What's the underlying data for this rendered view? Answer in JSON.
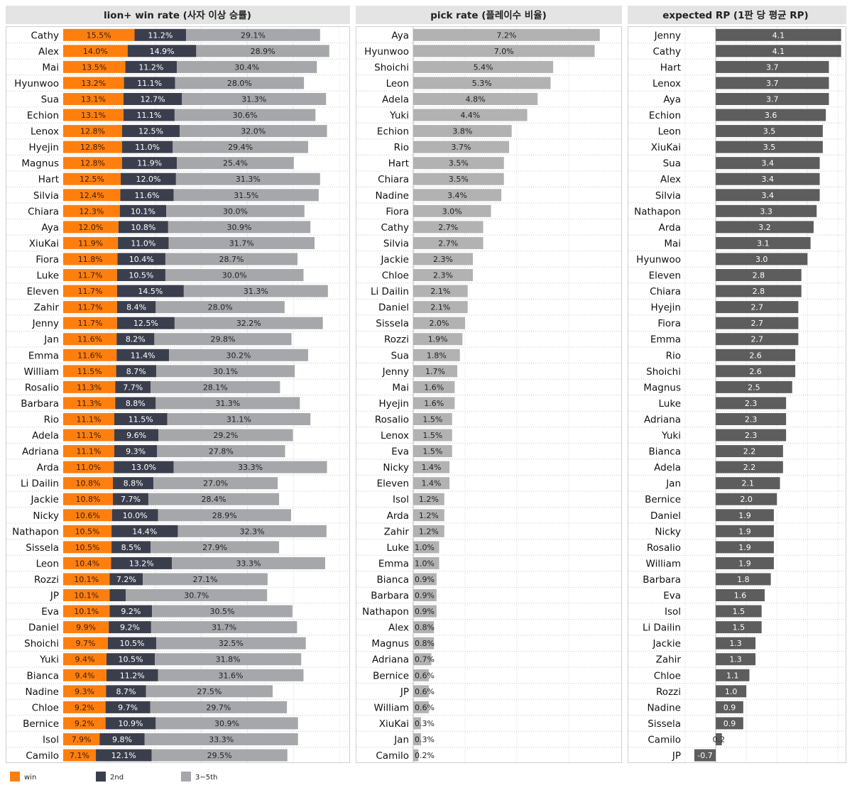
{
  "colors": {
    "win": "#ff7f0e",
    "second": "#3b3f4d",
    "third": "#a5a7aa",
    "pick": "#b2b2b2",
    "rp": "#5d5d5d",
    "header_bg": "#e4e4e4"
  },
  "legend": {
    "win": "win",
    "second": "2nd",
    "third": "3~5th"
  },
  "chart_data": [
    {
      "type": "bar",
      "stacked": true,
      "orientation": "horizontal",
      "title": "lion+ win rate (사자 이상 승률)",
      "series_names": [
        "win",
        "2nd",
        "3~5th"
      ],
      "categories": [
        "Cathy",
        "Alex",
        "Mai",
        "Hyunwoo",
        "Sua",
        "Echion",
        "Lenox",
        "Hyejin",
        "Magnus",
        "Hart",
        "Silvia",
        "Chiara",
        "Aya",
        "XiuKai",
        "Fiora",
        "Luke",
        "Eleven",
        "Zahir",
        "Jenny",
        "Jan",
        "Emma",
        "William",
        "Rosalio",
        "Barbara",
        "Rio",
        "Adela",
        "Adriana",
        "Arda",
        "Li Dailin",
        "Jackie",
        "Nicky",
        "Nathapon",
        "Sissela",
        "Leon",
        "Rozzi",
        "JP",
        "Eva",
        "Daniel",
        "Shoichi",
        "Yuki",
        "Bianca",
        "Nadine",
        "Chloe",
        "Bernice",
        "Isol",
        "Camilo"
      ],
      "win": [
        15.5,
        14.0,
        13.5,
        13.2,
        13.1,
        13.1,
        12.8,
        12.8,
        12.8,
        12.5,
        12.4,
        12.3,
        12.0,
        11.9,
        11.8,
        11.7,
        11.7,
        11.7,
        11.7,
        11.6,
        11.6,
        11.5,
        11.3,
        11.3,
        11.1,
        11.1,
        11.1,
        11.0,
        10.8,
        10.8,
        10.6,
        10.5,
        10.5,
        10.4,
        10.1,
        10.1,
        10.1,
        9.9,
        9.7,
        9.4,
        9.4,
        9.3,
        9.2,
        9.2,
        7.9,
        7.1
      ],
      "second": [
        11.2,
        14.9,
        11.2,
        11.1,
        12.7,
        11.1,
        12.5,
        11.0,
        11.9,
        12.0,
        11.6,
        10.1,
        10.8,
        11.0,
        10.4,
        10.5,
        14.5,
        8.4,
        12.5,
        8.2,
        11.4,
        8.7,
        7.7,
        8.8,
        11.5,
        9.6,
        9.3,
        13.0,
        8.8,
        7.7,
        10.0,
        14.4,
        8.5,
        13.2,
        7.2,
        3.5,
        9.2,
        9.2,
        10.5,
        10.5,
        11.2,
        8.7,
        9.7,
        10.9,
        9.8,
        12.1
      ],
      "third": [
        29.1,
        28.9,
        30.4,
        28.0,
        31.3,
        30.6,
        32.0,
        29.4,
        25.4,
        31.3,
        31.5,
        30.0,
        30.9,
        31.7,
        28.7,
        30.0,
        31.3,
        28.0,
        32.2,
        29.8,
        30.2,
        30.1,
        28.1,
        31.3,
        31.1,
        29.2,
        27.8,
        33.3,
        27.0,
        28.4,
        28.9,
        32.3,
        27.9,
        33.3,
        27.1,
        30.7,
        30.5,
        31.7,
        32.5,
        31.8,
        31.6,
        27.5,
        29.7,
        30.9,
        33.3,
        29.5
      ],
      "labels_win": [
        "15.5%",
        "14.0%",
        "13.5%",
        "13.2%",
        "13.1%",
        "13.1%",
        "12.8%",
        "12.8%",
        "12.8%",
        "12.5%",
        "12.4%",
        "12.3%",
        "12.0%",
        "11.9%",
        "11.8%",
        "11.7%",
        "11.7%",
        "11.7%",
        "11.7%",
        "11.6%",
        "11.6%",
        "11.5%",
        "11.3%",
        "11.3%",
        "11.1%",
        "11.1%",
        "11.1%",
        "11.0%",
        "10.8%",
        "10.8%",
        "10.6%",
        "10.5%",
        "10.5%",
        "10.4%",
        "10.1%",
        "10.1%",
        "10.1%",
        "9.9%",
        "9.7%",
        "9.4%",
        "9.4%",
        "9.3%",
        "9.2%",
        "9.2%",
        "7.9%",
        "7.1%"
      ],
      "labels_second": [
        "11.2%",
        "14.9%",
        "11.2%",
        "11.1%",
        "12.7%",
        "11.1%",
        "12.5%",
        "11.0%",
        "11.9%",
        "12.0%",
        "11.6%",
        "10.1%",
        "10.8%",
        "11.0%",
        "10.4%",
        "10.5%",
        "14.5%",
        "8.4%",
        "12.5%",
        "8.2%",
        "11.4%",
        "8.7%",
        "7.7%",
        "8.8%",
        "11.5%",
        "9.6%",
        "9.3%",
        "13.0%",
        "8.8%",
        "7.7%",
        "10.0%",
        "14.4%",
        "8.5%",
        "13.2%",
        "7.2%",
        "",
        "9.2%",
        "9.2%",
        "10.5%",
        "10.5%",
        "11.2%",
        "8.7%",
        "9.7%",
        "10.9%",
        "9.8%",
        "12.1%"
      ],
      "labels_third": [
        "29.1%",
        "28.9%",
        "30.4%",
        "28.0%",
        "31.3%",
        "30.6%",
        "32.0%",
        "29.4%",
        "25.4%",
        "31.3%",
        "31.5%",
        "30.0%",
        "30.9%",
        "31.7%",
        "28.7%",
        "30.0%",
        "31.3%",
        "28.0%",
        "32.2%",
        "29.8%",
        "30.2%",
        "30.1%",
        "28.1%",
        "31.3%",
        "31.1%",
        "29.2%",
        "27.8%",
        "33.3%",
        "27.0%",
        "28.4%",
        "28.9%",
        "32.3%",
        "27.9%",
        "33.3%",
        "27.1%",
        "30.7%",
        "30.5%",
        "31.7%",
        "32.5%",
        "31.8%",
        "31.6%",
        "27.5%",
        "29.7%",
        "30.9%",
        "33.3%",
        "29.5%"
      ],
      "xlim": [
        0,
        62
      ],
      "grid": true
    },
    {
      "type": "bar",
      "orientation": "horizontal",
      "title": "pick rate (플레이수 비율)",
      "categories": [
        "Aya",
        "Hyunwoo",
        "Shoichi",
        "Leon",
        "Adela",
        "Yuki",
        "Echion",
        "Rio",
        "Hart",
        "Chiara",
        "Nadine",
        "Fiora",
        "Cathy",
        "Silvia",
        "Jackie",
        "Chloe",
        "Li Dailin",
        "Daniel",
        "Sissela",
        "Rozzi",
        "Sua",
        "Jenny",
        "Mai",
        "Hyejin",
        "Rosalio",
        "Lenox",
        "Eva",
        "Nicky",
        "Eleven",
        "Isol",
        "Arda",
        "Zahir",
        "Luke",
        "Emma",
        "Bianca",
        "Barbara",
        "Nathapon",
        "Alex",
        "Magnus",
        "Adriana",
        "Bernice",
        "JP",
        "William",
        "XiuKai",
        "Jan",
        "Camilo"
      ],
      "values": [
        7.2,
        7.0,
        5.4,
        5.3,
        4.8,
        4.4,
        3.8,
        3.7,
        3.5,
        3.5,
        3.4,
        3.0,
        2.7,
        2.7,
        2.3,
        2.3,
        2.1,
        2.1,
        2.0,
        1.9,
        1.8,
        1.7,
        1.6,
        1.6,
        1.5,
        1.5,
        1.5,
        1.4,
        1.4,
        1.2,
        1.2,
        1.2,
        1.0,
        1.0,
        0.9,
        0.9,
        0.9,
        0.8,
        0.8,
        0.7,
        0.6,
        0.6,
        0.6,
        0.3,
        0.3,
        0.2
      ],
      "labels": [
        "7.2%",
        "7.0%",
        "5.4%",
        "5.3%",
        "4.8%",
        "4.4%",
        "3.8%",
        "3.7%",
        "3.5%",
        "3.5%",
        "3.4%",
        "3.0%",
        "2.7%",
        "2.7%",
        "2.3%",
        "2.3%",
        "2.1%",
        "2.1%",
        "2.0%",
        "1.9%",
        "1.8%",
        "1.7%",
        "1.6%",
        "1.6%",
        "1.5%",
        "1.5%",
        "1.5%",
        "1.4%",
        "1.4%",
        "1.2%",
        "1.2%",
        "1.2%",
        "1.0%",
        "1.0%",
        "0.9%",
        "0.9%",
        "0.9%",
        "0.8%",
        "0.8%",
        "0.7%",
        "0.6%",
        "0.6%",
        "0.6%",
        "0.3%",
        "0.3%",
        "0.2%"
      ],
      "xlim": [
        0,
        8
      ],
      "grid": true
    },
    {
      "type": "bar",
      "orientation": "horizontal",
      "title": "expected RP (1판 당 평균 RP)",
      "categories": [
        "Jenny",
        "Cathy",
        "Hart",
        "Lenox",
        "Aya",
        "Echion",
        "Leon",
        "XiuKai",
        "Sua",
        "Alex",
        "Silvia",
        "Nathapon",
        "Arda",
        "Mai",
        "Hyunwoo",
        "Eleven",
        "Chiara",
        "Hyejin",
        "Fiora",
        "Emma",
        "Rio",
        "Shoichi",
        "Magnus",
        "Luke",
        "Adriana",
        "Yuki",
        "Bianca",
        "Adela",
        "Jan",
        "Bernice",
        "Daniel",
        "Nicky",
        "Rosalio",
        "William",
        "Barbara",
        "Eva",
        "Isol",
        "Li Dailin",
        "Jackie",
        "Zahir",
        "Chloe",
        "Rozzi",
        "Nadine",
        "Sissela",
        "Camilo",
        "JP"
      ],
      "values": [
        4.1,
        4.1,
        3.7,
        3.7,
        3.7,
        3.6,
        3.5,
        3.5,
        3.4,
        3.4,
        3.4,
        3.3,
        3.2,
        3.1,
        3.0,
        2.8,
        2.8,
        2.7,
        2.7,
        2.7,
        2.6,
        2.6,
        2.5,
        2.3,
        2.3,
        2.3,
        2.2,
        2.2,
        2.1,
        2.0,
        1.9,
        1.9,
        1.9,
        1.9,
        1.8,
        1.6,
        1.5,
        1.5,
        1.3,
        1.3,
        1.1,
        1.0,
        0.9,
        0.9,
        0.2,
        -0.7
      ],
      "labels": [
        "4.1",
        "4.1",
        "3.7",
        "3.7",
        "3.7",
        "3.6",
        "3.5",
        "3.5",
        "3.4",
        "3.4",
        "3.4",
        "3.3",
        "3.2",
        "3.1",
        "3.0",
        "2.8",
        "2.8",
        "2.7",
        "2.7",
        "2.7",
        "2.6",
        "2.6",
        "2.5",
        "2.3",
        "2.3",
        "2.3",
        "2.2",
        "2.2",
        "2.1",
        "2.0",
        "1.9",
        "1.9",
        "1.9",
        "1.9",
        "1.8",
        "1.6",
        "1.5",
        "1.5",
        "1.3",
        "1.3",
        "1.1",
        "1.0",
        "0.9",
        "0.9",
        "0.2",
        "-0.7"
      ],
      "xlim": [
        -1,
        4.2
      ],
      "grid": true
    }
  ]
}
